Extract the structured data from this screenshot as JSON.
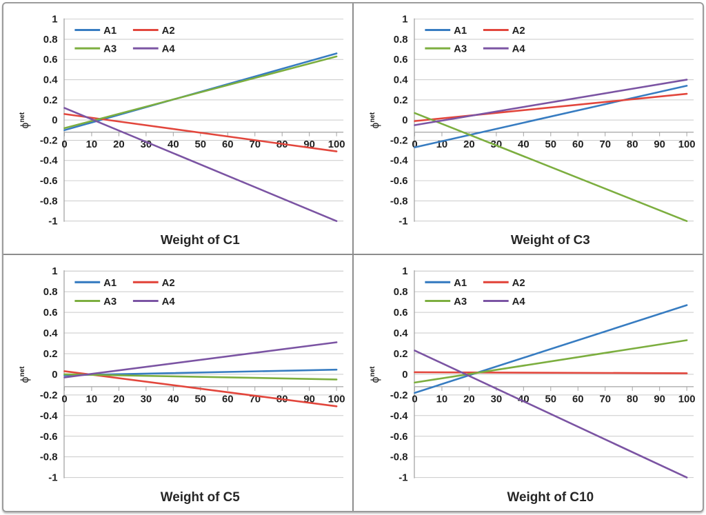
{
  "figure": {
    "ylabel": {
      "base": "ϕ",
      "sup": "net"
    },
    "legend_labels": [
      "A1",
      "A2",
      "A3",
      "A4"
    ],
    "colors": {
      "A1": "#377cc1",
      "A2": "#e2463c",
      "A3": "#7cae3f",
      "A4": "#7b54a3",
      "gridline": "#c9c9c9",
      "axis_line": "#a3a3a3",
      "text": "#1f1f1f",
      "border": "#9b9b9b"
    },
    "y_tick_labels": [
      "1",
      "0.8",
      "0.6",
      "0.4",
      "0.2",
      "0",
      "-0.2",
      "-0.4",
      "-0.6",
      "-0.8",
      "-1"
    ],
    "x_tick_labels": [
      "0",
      "10",
      "20",
      "30",
      "40",
      "50",
      "60",
      "70",
      "80",
      "90",
      "100"
    ]
  },
  "chart_data": [
    {
      "type": "line",
      "title": "Weight of C1",
      "xlabel": "Weight of C1",
      "ylabel": "phi-net",
      "x": [
        0,
        100
      ],
      "xlim": [
        0,
        100
      ],
      "ylim": [
        -1,
        1
      ],
      "grid": true,
      "legend_position": "top-left-inside",
      "x_axis_line_at": -0.12,
      "series": [
        {
          "name": "A1",
          "color": "#377cc1",
          "values": [
            -0.1,
            0.66
          ]
        },
        {
          "name": "A2",
          "color": "#e2463c",
          "values": [
            0.06,
            -0.31
          ]
        },
        {
          "name": "A3",
          "color": "#7cae3f",
          "values": [
            -0.08,
            0.63
          ]
        },
        {
          "name": "A4",
          "color": "#7b54a3",
          "values": [
            0.12,
            -1.0
          ]
        }
      ]
    },
    {
      "type": "line",
      "title": "Weight of C3",
      "xlabel": "Weight of C3",
      "ylabel": "phi-net",
      "x": [
        0,
        100
      ],
      "xlim": [
        0,
        100
      ],
      "ylim": [
        -1,
        1
      ],
      "grid": true,
      "legend_position": "top-left-inside",
      "x_axis_line_at": -0.12,
      "series": [
        {
          "name": "A1",
          "color": "#377cc1",
          "values": [
            -0.27,
            0.34
          ]
        },
        {
          "name": "A2",
          "color": "#e2463c",
          "values": [
            -0.01,
            0.26
          ]
        },
        {
          "name": "A3",
          "color": "#7cae3f",
          "values": [
            0.07,
            -1.0
          ]
        },
        {
          "name": "A4",
          "color": "#7b54a3",
          "values": [
            -0.05,
            0.4
          ]
        }
      ]
    },
    {
      "type": "line",
      "title": "Weight of C5",
      "xlabel": "Weight of C5",
      "ylabel": "phi-net",
      "x": [
        0,
        100
      ],
      "xlim": [
        0,
        100
      ],
      "ylim": [
        -1,
        1
      ],
      "grid": true,
      "legend_position": "top-left-inside",
      "x_axis_line_at": -0.12,
      "series": [
        {
          "name": "A1",
          "color": "#377cc1",
          "values": [
            -0.01,
            0.045
          ]
        },
        {
          "name": "A2",
          "color": "#e2463c",
          "values": [
            0.03,
            -0.31
          ]
        },
        {
          "name": "A3",
          "color": "#7cae3f",
          "values": [
            0.0,
            -0.05
          ]
        },
        {
          "name": "A4",
          "color": "#7b54a3",
          "values": [
            -0.03,
            0.31
          ]
        }
      ]
    },
    {
      "type": "line",
      "title": "Weight of C10",
      "xlabel": "Weight of C10",
      "ylabel": "phi-net",
      "x": [
        0,
        100
      ],
      "xlim": [
        0,
        100
      ],
      "ylim": [
        -1,
        1
      ],
      "grid": true,
      "legend_position": "top-left-inside",
      "x_axis_line_at": -0.12,
      "series": [
        {
          "name": "A1",
          "color": "#377cc1",
          "values": [
            -0.18,
            0.67
          ]
        },
        {
          "name": "A2",
          "color": "#e2463c",
          "values": [
            0.02,
            0.01
          ]
        },
        {
          "name": "A3",
          "color": "#7cae3f",
          "values": [
            -0.08,
            0.33
          ]
        },
        {
          "name": "A4",
          "color": "#7b54a3",
          "values": [
            0.23,
            -1.0
          ]
        }
      ]
    }
  ]
}
